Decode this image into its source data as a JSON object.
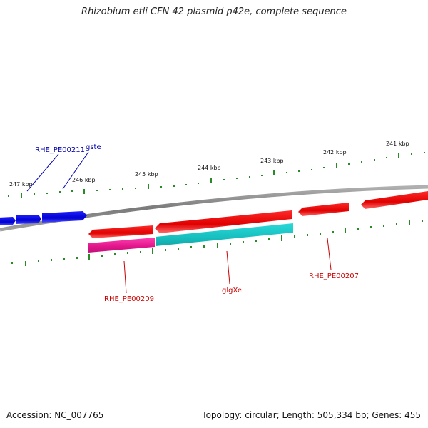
{
  "title": "Rhizobium etli CFN 42 plasmid p42e, complete sequence",
  "footer": {
    "accession": "Accession: NC_007765",
    "topology": "Topology: circular; Length: 505,334 bp; Genes: 455"
  },
  "colors": {
    "backbone": "#8a8a8a",
    "ticks": "#2a8a2a",
    "forward_gene": "#0000dd",
    "reverse_gene": "#ee0000",
    "pink_feature": "#ee2299",
    "cyan_feature": "#22cccc",
    "label_blue": "#0000aa",
    "label_red": "#cc0000"
  },
  "tick_labels": [
    "247 kbp",
    "246 kbp",
    "245 kbp",
    "244 kbp",
    "243 kbp",
    "242 kbp",
    "241 kbp"
  ],
  "gene_labels": [
    "RHE_PE00211",
    "gste",
    "RHE_PE00209",
    "glgXe",
    "RHE_PE00207"
  ]
}
